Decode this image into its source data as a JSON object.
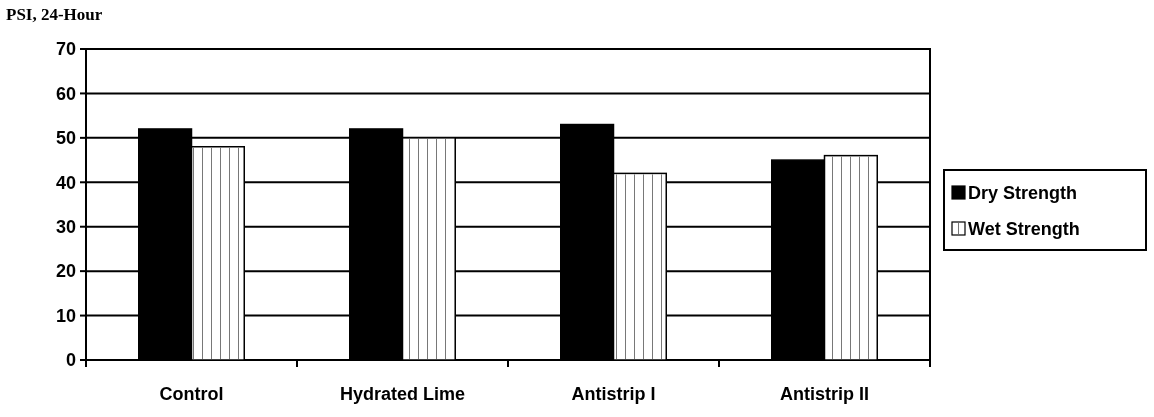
{
  "chart_data": {
    "type": "bar",
    "title": "PSI, 24-Hour",
    "categories": [
      "Control",
      "Hydrated Lime",
      "Antistrip I",
      "Antistrip II"
    ],
    "series": [
      {
        "name": "Dry Strength",
        "color": "#000000",
        "values": [
          52,
          52,
          53,
          45
        ]
      },
      {
        "name": "Wet Strength",
        "color": "#ffffff",
        "values": [
          48,
          50,
          42,
          46
        ]
      }
    ],
    "ylim": [
      0,
      70
    ],
    "yticks": [
      0,
      10,
      20,
      30,
      40,
      50,
      60,
      70
    ],
    "grid": "y",
    "legend": "right"
  }
}
